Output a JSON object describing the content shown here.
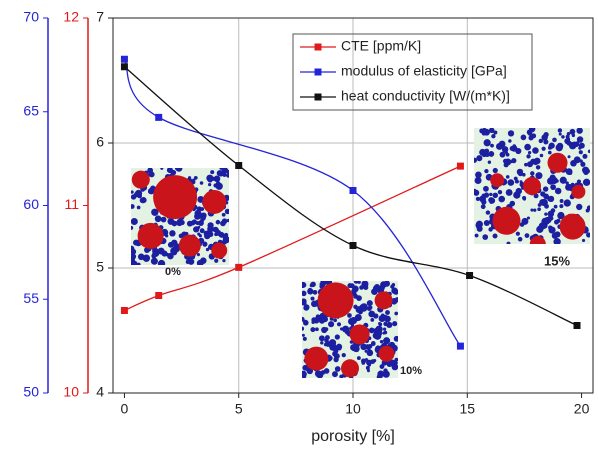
{
  "chart_data": {
    "type": "line",
    "x_label": "porosity [%]",
    "xlim": [
      -0.5,
      20.5
    ],
    "xticks": [
      0,
      5,
      10,
      15,
      20
    ],
    "ylim": [
      4,
      7
    ],
    "yticks": [
      4,
      5,
      6,
      7
    ],
    "y2lim": [
      50,
      70
    ],
    "y2ticks": [
      50,
      55,
      60,
      65,
      70
    ],
    "y2color": "#2424d8",
    "y3lim": [
      10,
      12
    ],
    "y3ticks": [
      10,
      11,
      12
    ],
    "y3color": "#e01a1a",
    "grid": true,
    "legend": "top-right",
    "series": [
      {
        "name": "CTE [ppm/K]",
        "color": "#e01a1a",
        "axis": "y3",
        "x": [
          0,
          1.5,
          5,
          14.7
        ],
        "values": [
          10.44,
          10.52,
          10.67,
          11.21
        ]
      },
      {
        "name": "modulus of elasticity [GPa]",
        "color": "#2424d8",
        "axis": "y2",
        "x": [
          0,
          1.5,
          10,
          14.7
        ],
        "values": [
          67.8,
          64.7,
          60.8,
          52.5
        ]
      },
      {
        "name": "heat conductivity [W/(m*K)]",
        "color": "#111111",
        "axis": "y",
        "x": [
          0,
          5,
          10,
          15.1,
          19.8
        ],
        "values": [
          6.61,
          5.82,
          5.18,
          4.94,
          4.54
        ]
      }
    ],
    "annotations": [
      "0%",
      "10%",
      "15%"
    ]
  }
}
